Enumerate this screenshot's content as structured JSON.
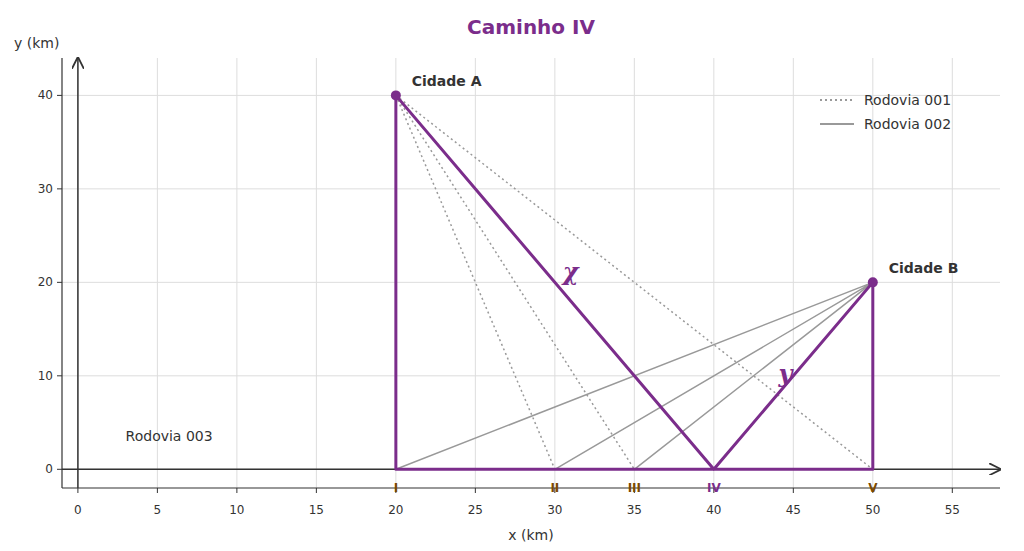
{
  "chart_data": {
    "type": "line",
    "title": "Caminho IV",
    "title_color": "#7B2D8B",
    "xlabel": "x (km)",
    "ylabel": "y (km)",
    "xlim": [
      -1,
      58
    ],
    "ylim": [
      -2,
      44
    ],
    "xticks": [
      0,
      5,
      10,
      15,
      20,
      25,
      30,
      35,
      40,
      45,
      50,
      55
    ],
    "yticks": [
      0,
      10,
      20,
      30,
      40
    ],
    "grid": true,
    "legend": "upper right",
    "series": [
      {
        "name": "Rodovia 001",
        "color": "#999999",
        "line_style": "dotted",
        "x": [
          20,
          30,
          null,
          20,
          35,
          null,
          20,
          40,
          null,
          20,
          50
        ],
        "values": [
          40,
          0,
          null,
          40,
          0,
          null,
          40,
          0,
          null,
          40,
          0
        ]
      },
      {
        "name": "Rodovia 002",
        "color": "#999999",
        "line_style": "solid",
        "x": [
          50,
          20,
          null,
          50,
          30,
          null,
          50,
          35,
          null,
          50,
          40
        ],
        "values": [
          20,
          0,
          null,
          20,
          0,
          null,
          20,
          0,
          null,
          20,
          0
        ]
      },
      {
        "color": "#7B2D8B",
        "line_style": "solid",
        "x": [
          20,
          20,
          null,
          20,
          50,
          null,
          20,
          40,
          null,
          40,
          50,
          null,
          50,
          50
        ],
        "values": [
          40,
          0,
          null,
          0,
          0,
          null,
          40,
          0,
          null,
          0,
          20,
          null,
          20,
          0
        ]
      },
      {
        "type": "scatter",
        "marker": "circle",
        "color": "#7B2D8B",
        "x": [
          20,
          50
        ],
        "values": [
          40,
          20
        ]
      }
    ],
    "point_labels": [
      {
        "text": "I",
        "x": 20,
        "y": -1.5,
        "color": "#7B4A00"
      },
      {
        "text": "II",
        "x": 30,
        "y": -1.5,
        "color": "#7B4A00"
      },
      {
        "text": "III",
        "x": 35,
        "y": -1.5,
        "color": "#7B4A00"
      },
      {
        "text": "IV",
        "x": 40,
        "y": -1.5,
        "color": "#7B2D8B"
      },
      {
        "text": "V",
        "x": 50,
        "y": -1.5,
        "color": "#7B4A00"
      }
    ],
    "annotations": [
      {
        "text": "Cidade A",
        "x": 21,
        "y": 41
      },
      {
        "text": "Cidade B",
        "x": 51,
        "y": 21
      },
      {
        "text": "Rodovia 003",
        "x": 3,
        "y": 3.5
      }
    ],
    "path_labels": [
      {
        "text": "χ",
        "x": 31,
        "y": 21,
        "color": "#7B2D8B"
      },
      {
        "text": "y",
        "x": 44.5,
        "y": 10,
        "color": "#7B2D8B"
      }
    ]
  }
}
